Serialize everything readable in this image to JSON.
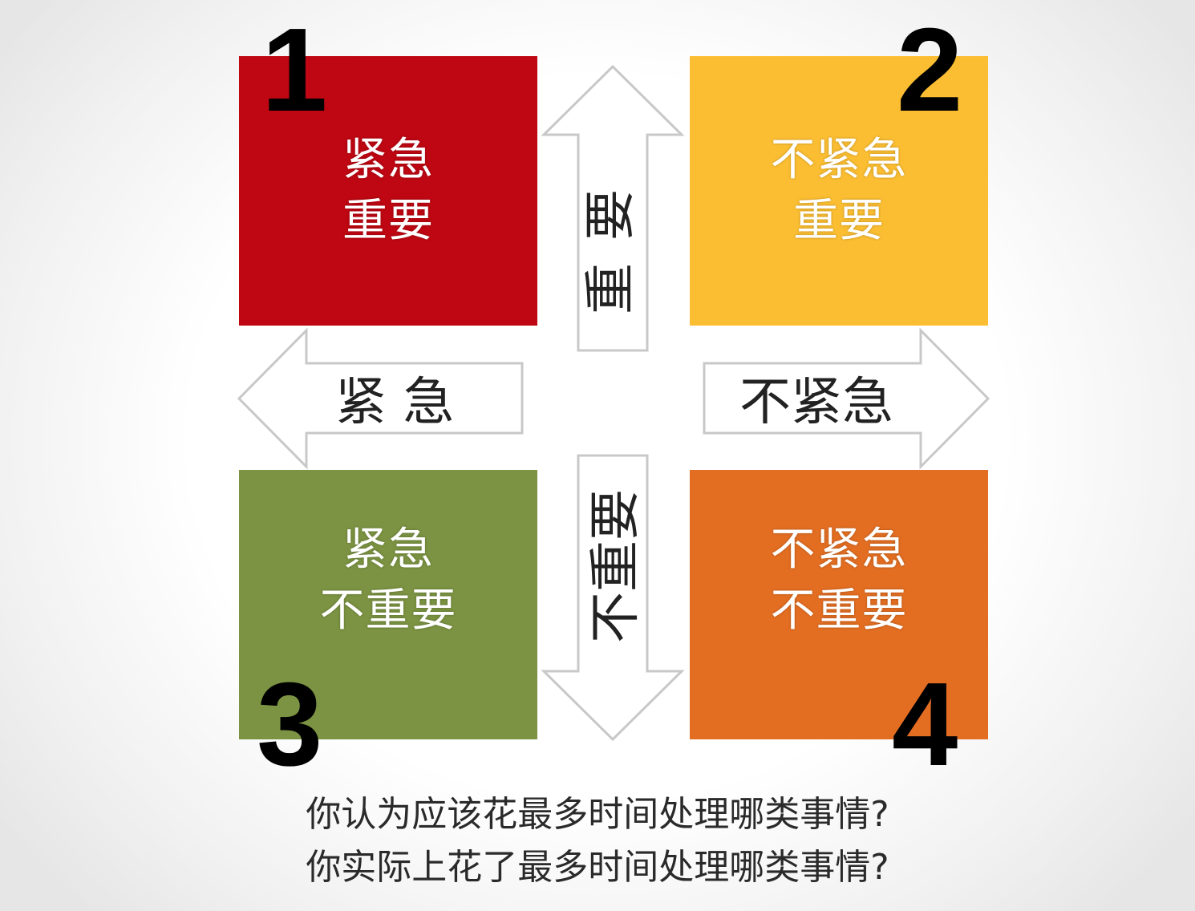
{
  "quadrants": [
    {
      "number": "1",
      "line1": "紧急",
      "line2": "重要",
      "color": "#BE0712"
    },
    {
      "number": "2",
      "line1": "不紧急",
      "line2": "重要",
      "color": "#FBBE32"
    },
    {
      "number": "3",
      "line1": "紧急",
      "line2": "不重要",
      "color": "#7B9342"
    },
    {
      "number": "4",
      "line1": "不紧急",
      "line2": "不重要",
      "color": "#E36E22"
    }
  ],
  "arrows": {
    "up": "重要",
    "down": "不重要",
    "left": "紧 急",
    "right": "不紧急"
  },
  "questions": [
    "你认为应该花最多时间处理哪类事情?",
    "你实际上花了最多时间处理哪类事情?"
  ],
  "arrow_stroke": "#c8c8c8"
}
